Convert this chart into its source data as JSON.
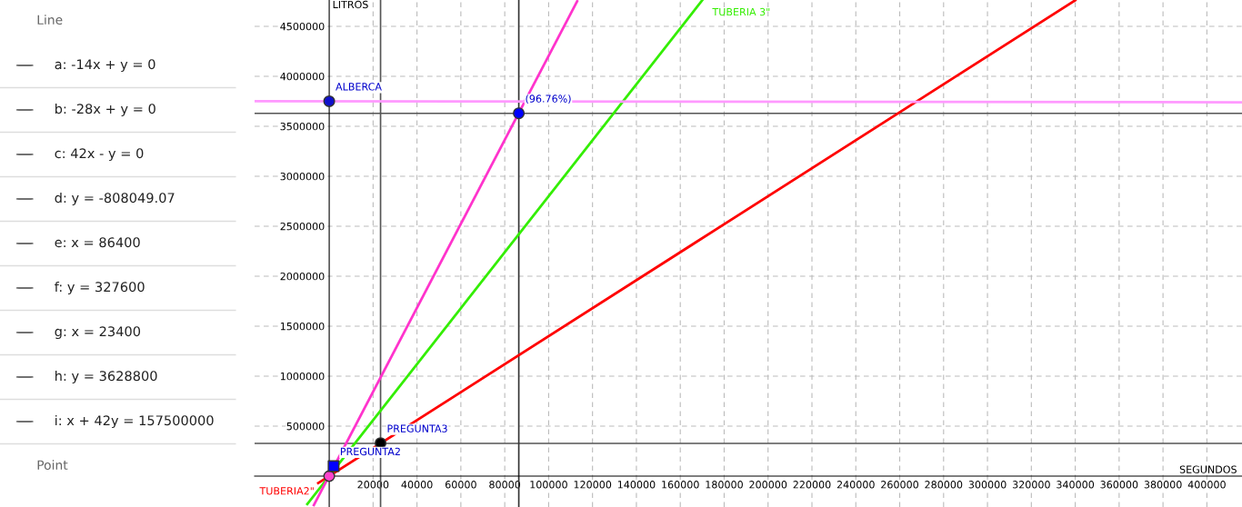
{
  "chart_data": [
    {
      "type": "other",
      "annotations": [
        "Line",
        "a: -14x + y = 0",
        "b: -28x + y = 0",
        "c: 42x - y = 0",
        "d: y = -808049.07",
        "e: x = 86400",
        "f: y = 327600",
        "g: x = 23400",
        "h: y = 3628800",
        "i: x + 42y = 157500000",
        "Point"
      ]
    },
    {
      "type": "line",
      "xlabel": "SEGUNDOS",
      "ylabel": "LITROS",
      "xlim": [
        -34000,
        416000
      ],
      "ylim": [
        -309000,
        4763000
      ],
      "xticks": [
        20000,
        40000,
        60000,
        80000,
        100000,
        120000,
        140000,
        160000,
        180000,
        200000,
        220000,
        240000,
        260000,
        280000,
        300000,
        320000,
        340000,
        360000,
        380000,
        400000
      ],
      "yticks": [
        500000,
        1000000,
        1500000,
        2000000,
        2500000,
        3000000,
        3500000,
        4000000,
        4500000
      ],
      "grid": true,
      "series": [
        {
          "name": "TUBERIA2\"",
          "color": "#ff0000",
          "x": [
            340000,
            -5000
          ],
          "values": [
            4760000,
            -70000
          ]
        },
        {
          "name": "TUBERIA 3\"",
          "color": "#33ee00",
          "x": [
            -10000,
            170000
          ],
          "values": [
            -280000,
            4760000
          ]
        },
        {
          "color": "#ff33cc",
          "x": [
            -7000,
            113000
          ],
          "values": [
            -290000,
            4750000
          ]
        },
        {
          "color": "#ff99ff",
          "x": [
            -34000,
            416000
          ],
          "values": [
            3750000,
            3740000
          ]
        },
        {
          "type": "scatter",
          "marker": "circle",
          "color": "#ff44cc",
          "x": [
            0
          ],
          "values": [
            0
          ]
        },
        {
          "type": "scatter",
          "marker": "square",
          "color": "#0000ff",
          "x": [
            2000
          ],
          "values": [
            100000
          ]
        },
        {
          "type": "scatter",
          "marker": "circle",
          "color": "#000000",
          "x": [
            23400
          ],
          "values": [
            330000
          ]
        },
        {
          "type": "scatter",
          "marker": "circle",
          "color": "#0000ff",
          "x": [
            86400
          ],
          "values": [
            3630000
          ]
        },
        {
          "type": "scatter",
          "marker": "circle",
          "color": "#1010cc",
          "x": [
            0
          ],
          "values": [
            3750000
          ]
        }
      ],
      "ref_lines": [
        {
          "axis": "y",
          "value": 3628800,
          "color": "#555555"
        },
        {
          "axis": "y",
          "value": 327600,
          "color": "#555555"
        },
        {
          "axis": "x",
          "value": 86400,
          "color": "#333333"
        },
        {
          "axis": "x",
          "value": 23400,
          "color": "#555555"
        }
      ],
      "annotations": [
        {
          "text": "ALBERCA",
          "x": 0,
          "y": 3750000
        },
        {
          "text": "(96.76%)",
          "x": 86400,
          "y": 3630000
        },
        {
          "text": "PREGUNTA3",
          "x": 23400,
          "y": 330000
        },
        {
          "text": "PREGUNTA2",
          "x": 2000,
          "y": 100000
        }
      ]
    }
  ]
}
